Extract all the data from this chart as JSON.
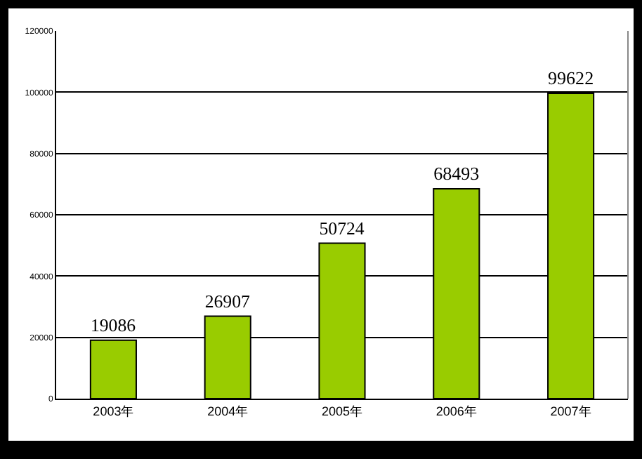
{
  "chart_data": {
    "type": "bar",
    "categories": [
      "2003年",
      "2004年",
      "2005年",
      "2006年",
      "2007年"
    ],
    "values": [
      19086,
      26907,
      50724,
      68493,
      99622
    ],
    "color": "#99cc00",
    "ylim": [
      0,
      120000
    ],
    "yticks": [
      0,
      20000,
      40000,
      60000,
      80000,
      100000,
      120000
    ],
    "grid": "y",
    "data_labels": true
  }
}
